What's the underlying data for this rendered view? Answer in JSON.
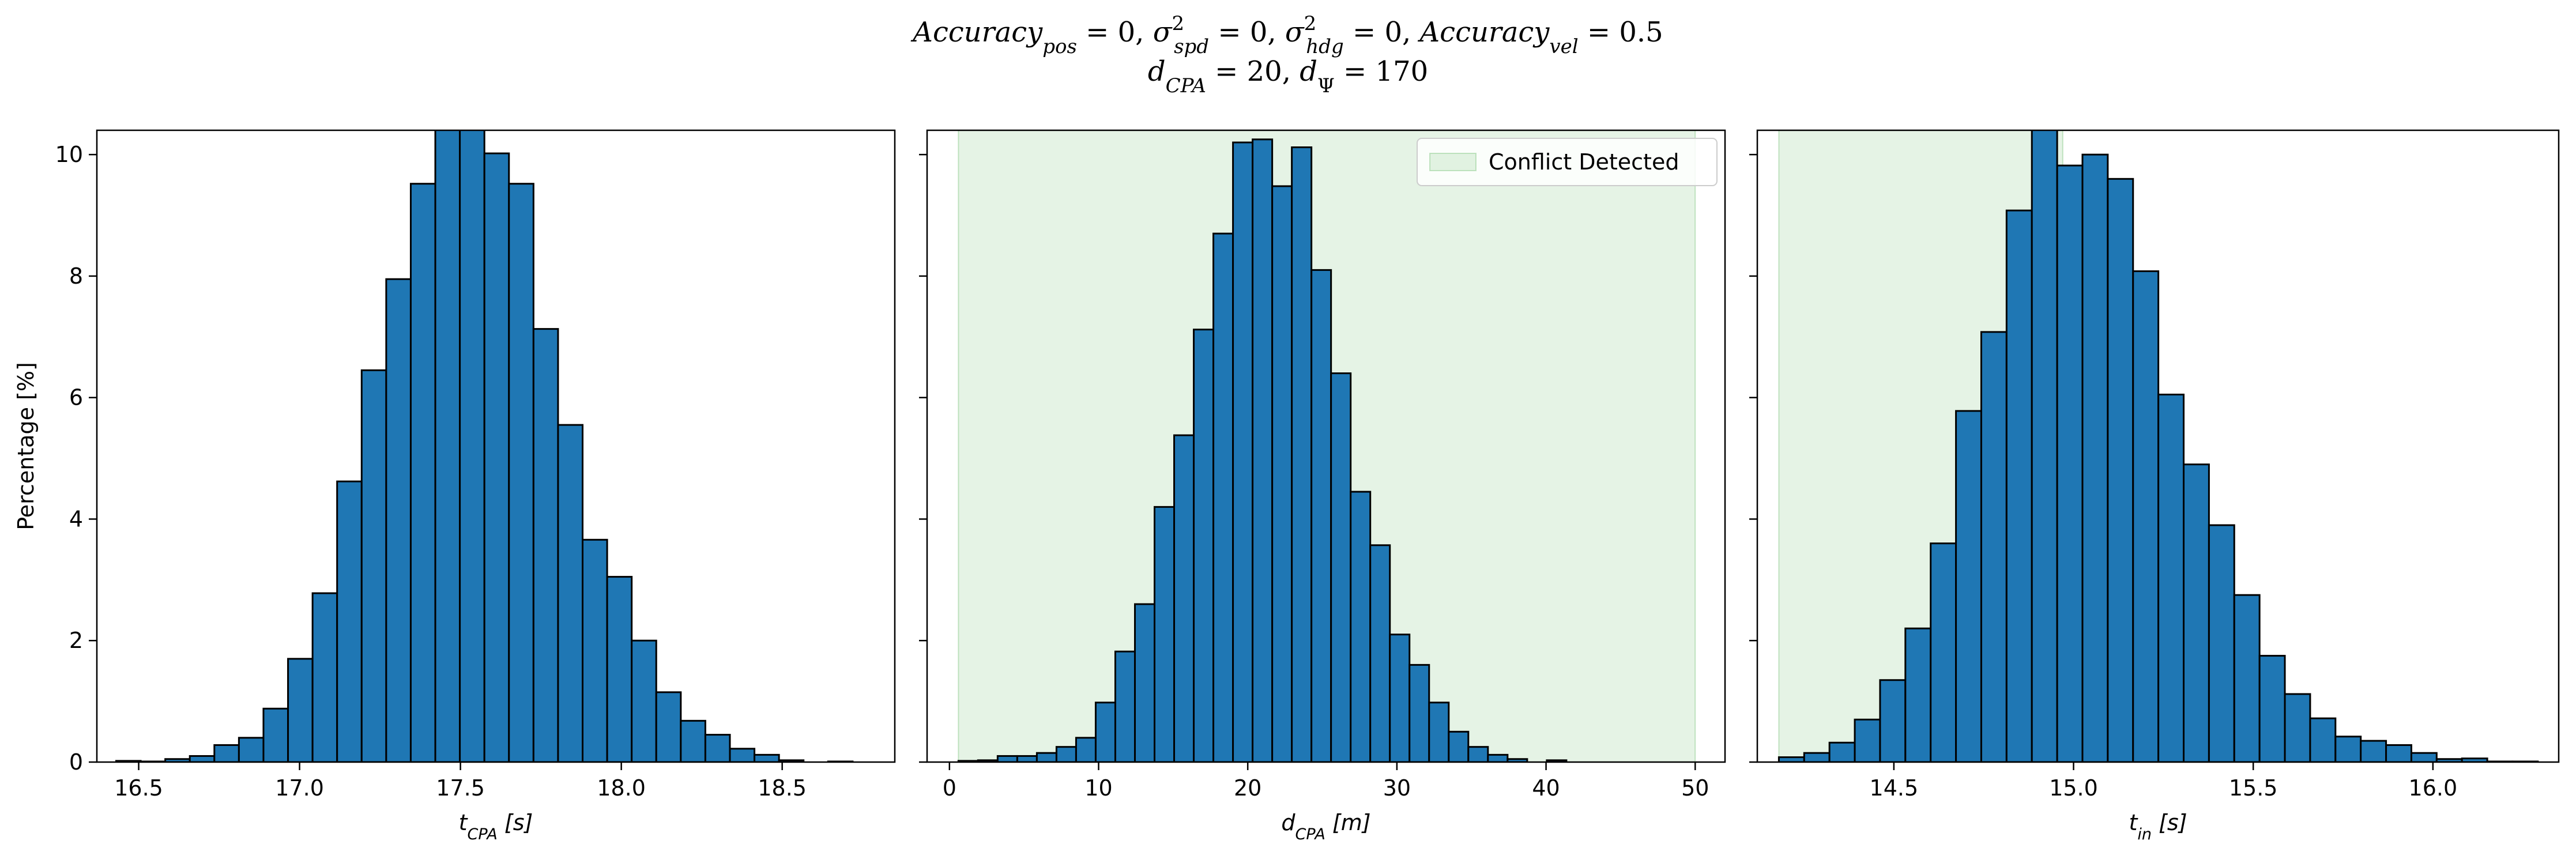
{
  "figure": {
    "title_line1": "Accuracy_pos = 0, σ²_spd = 0, σ²_hdg = 0, Accuracy_vel = 0.5",
    "title_line2": "d_CPA = 20, d_Ψ = 170"
  },
  "colors": {
    "bar_fill": "#1f77b4",
    "bar_edge": "#000000",
    "conflict_band": "#2ca02c"
  },
  "chart_data": [
    {
      "type": "bar",
      "subtype": "histogram",
      "xlabel": "t_CPA [s]",
      "ylabel": "Percentage [%]",
      "xlim": [
        16.37,
        18.85
      ],
      "ylim": [
        0,
        10.4
      ],
      "xticks": [
        16.5,
        17.0,
        17.5,
        18.0,
        18.5
      ],
      "xtick_labels": [
        "16.5",
        "17.0",
        "17.5",
        "18.0",
        "18.5"
      ],
      "yticks": [
        0,
        2,
        4,
        6,
        8,
        10
      ],
      "ytick_labels": [
        "0",
        "2",
        "4",
        "6",
        "8",
        "10"
      ],
      "bin_start": 16.43,
      "bin_width": 0.0763,
      "values": [
        0.02,
        0.01,
        0.05,
        0.1,
        0.28,
        0.4,
        0.88,
        1.7,
        2.78,
        4.62,
        6.45,
        7.95,
        9.52,
        10.48,
        10.45,
        10.02,
        9.52,
        7.13,
        5.55,
        3.66,
        3.05,
        2.0,
        1.15,
        0.68,
        0.45,
        0.22,
        0.12,
        0.03,
        0.0,
        0.01
      ],
      "grid": false
    },
    {
      "type": "bar",
      "subtype": "histogram",
      "xlabel": "d_CPA [m]",
      "ylabel": "",
      "xlim": [
        -1.5,
        52.0
      ],
      "ylim": [
        0,
        10.4
      ],
      "xticks": [
        0,
        10,
        20,
        30,
        40,
        50
      ],
      "xtick_labels": [
        "0",
        "10",
        "20",
        "30",
        "40",
        "50"
      ],
      "yticks": [
        0,
        2,
        4,
        6,
        8,
        10
      ],
      "conflict_band": [
        0.6,
        50.0
      ],
      "legend": {
        "label": "Conflict Detected",
        "position": "upper right"
      },
      "bin_start": 0.6,
      "bin_width": 1.315,
      "values": [
        0.02,
        0.03,
        0.1,
        0.1,
        0.15,
        0.25,
        0.4,
        0.98,
        1.82,
        2.6,
        4.2,
        5.38,
        7.12,
        8.7,
        10.2,
        10.25,
        9.48,
        10.12,
        8.1,
        6.4,
        4.45,
        3.57,
        2.1,
        1.6,
        0.98,
        0.5,
        0.25,
        0.12,
        0.05,
        0.0,
        0.03,
        0.0,
        0.0,
        0.0,
        0.0,
        0.0,
        0.0
      ],
      "grid": false
    },
    {
      "type": "bar",
      "subtype": "histogram",
      "xlabel": "t_in [s]",
      "ylabel": "",
      "xlim": [
        14.12,
        16.35
      ],
      "ylim": [
        0,
        10.4
      ],
      "xticks": [
        14.5,
        15.0,
        15.5,
        16.0
      ],
      "xtick_labels": [
        "14.5",
        "15.0",
        "15.5",
        "16.0"
      ],
      "yticks": [
        0,
        2,
        4,
        6,
        8,
        10
      ],
      "conflict_band": [
        14.18,
        14.97
      ],
      "bin_start": 14.18,
      "bin_width": 0.0704,
      "values": [
        0.08,
        0.15,
        0.32,
        0.7,
        1.35,
        2.2,
        3.6,
        5.78,
        7.08,
        9.08,
        10.45,
        9.82,
        10.0,
        9.6,
        8.08,
        6.05,
        4.9,
        3.9,
        2.75,
        1.75,
        1.12,
        0.72,
        0.42,
        0.35,
        0.28,
        0.15,
        0.05,
        0.06,
        0.01,
        0.01
      ],
      "grid": false
    }
  ]
}
